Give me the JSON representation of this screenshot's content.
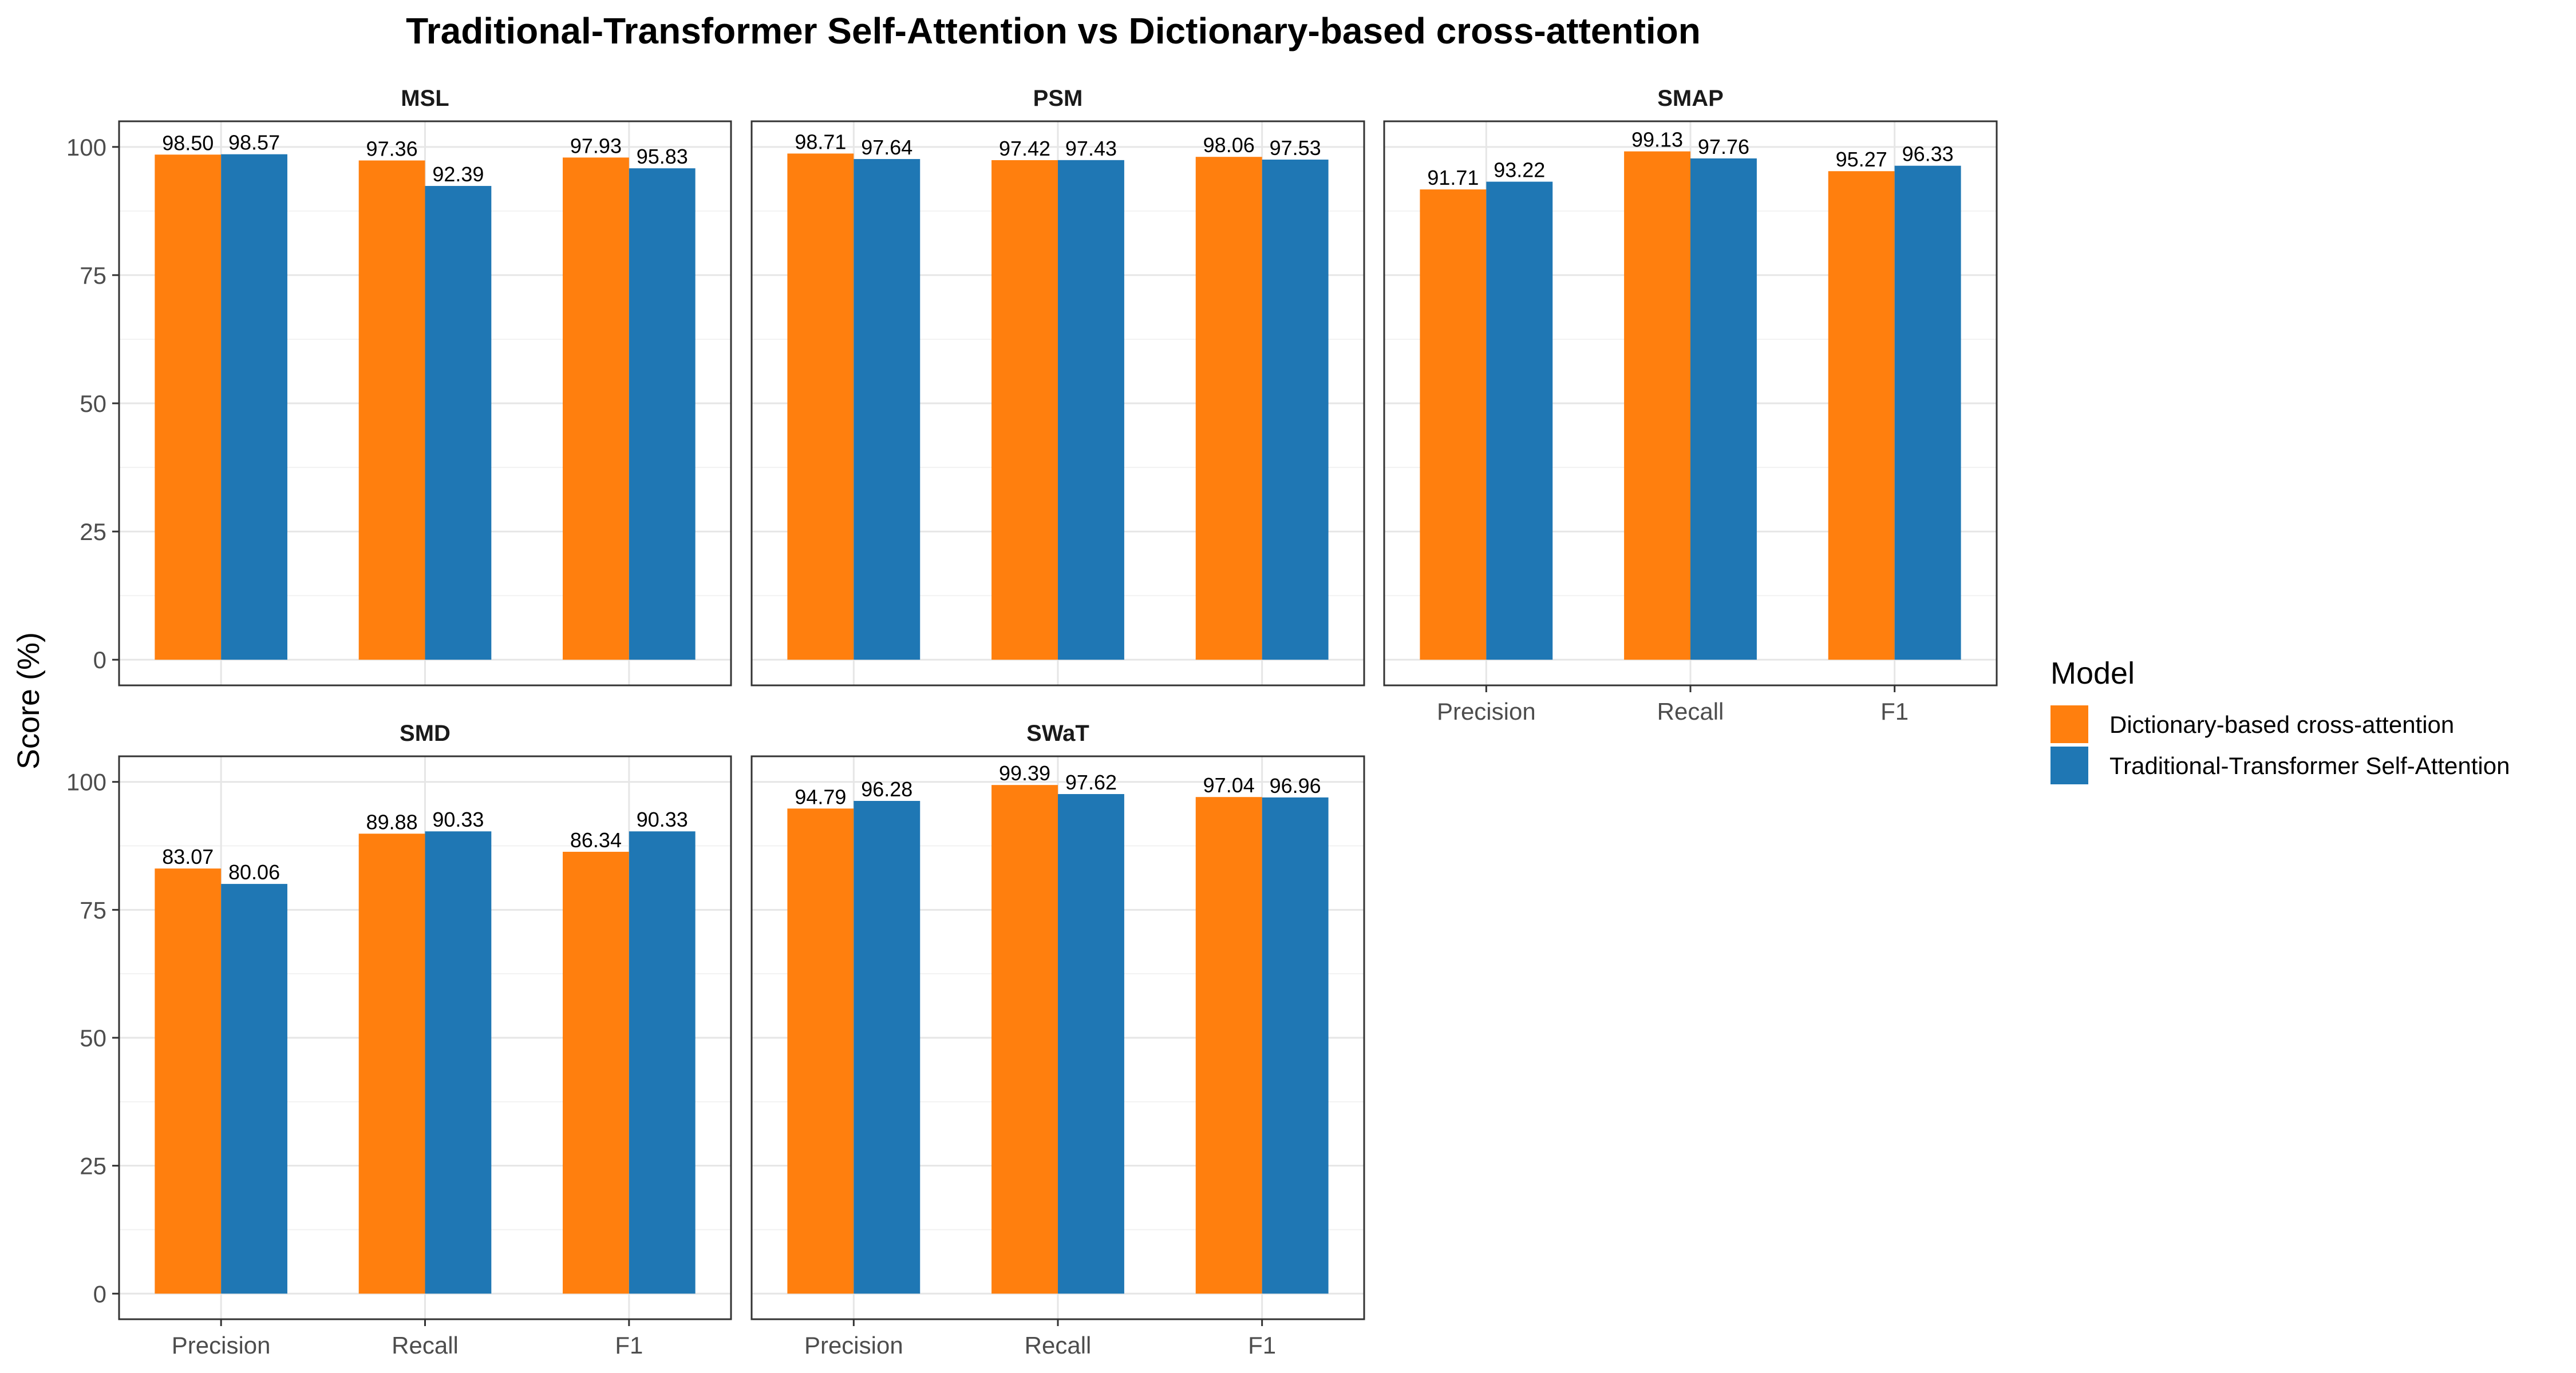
{
  "chart_data": {
    "type": "bar",
    "title": "Traditional-Transformer Self-Attention vs Dictionary-based cross-attention",
    "ylabel": "Score (%)",
    "xlabel": "",
    "ylim": [
      0,
      105
    ],
    "yticks": [
      "0",
      "25",
      "50",
      "75",
      "100"
    ],
    "categories": [
      "Precision",
      "Recall",
      "F1"
    ],
    "grid": true,
    "legend": {
      "title": "Model",
      "position": "right"
    },
    "series_colors": [
      "#ff7f0e",
      "#1f77b4"
    ],
    "series_names": [
      "Dictionary-based cross-attention",
      "Traditional-Transformer Self-Attention"
    ],
    "panels": [
      {
        "name": "MSL",
        "series": [
          {
            "values": [
              98.5,
              97.36,
              97.93
            ],
            "labels": [
              "98.50",
              "97.36",
              "97.93"
            ]
          },
          {
            "values": [
              98.57,
              92.39,
              95.83
            ],
            "labels": [
              "98.57",
              "92.39",
              "95.83"
            ]
          }
        ]
      },
      {
        "name": "PSM",
        "series": [
          {
            "values": [
              98.71,
              97.42,
              98.06
            ],
            "labels": [
              "98.71",
              "97.42",
              "98.06"
            ]
          },
          {
            "values": [
              97.64,
              97.43,
              97.53
            ],
            "labels": [
              "97.64",
              "97.43",
              "97.53"
            ]
          }
        ]
      },
      {
        "name": "SMAP",
        "series": [
          {
            "values": [
              91.71,
              99.13,
              95.27
            ],
            "labels": [
              "91.71",
              "99.13",
              "95.27"
            ]
          },
          {
            "values": [
              93.22,
              97.76,
              96.33
            ],
            "labels": [
              "93.22",
              "97.76",
              "96.33"
            ]
          }
        ]
      },
      {
        "name": "SMD",
        "series": [
          {
            "values": [
              83.07,
              89.88,
              86.34
            ],
            "labels": [
              "83.07",
              "89.88",
              "86.34"
            ]
          },
          {
            "values": [
              80.06,
              90.33,
              90.33
            ],
            "labels": [
              "80.06",
              "90.33",
              "90.33"
            ]
          }
        ]
      },
      {
        "name": "SWaT",
        "series": [
          {
            "values": [
              94.79,
              99.39,
              97.04
            ],
            "labels": [
              "94.79",
              "99.39",
              "97.04"
            ]
          },
          {
            "values": [
              96.28,
              97.62,
              96.96
            ],
            "labels": [
              "96.28",
              "97.62",
              "96.96"
            ]
          }
        ]
      }
    ]
  }
}
